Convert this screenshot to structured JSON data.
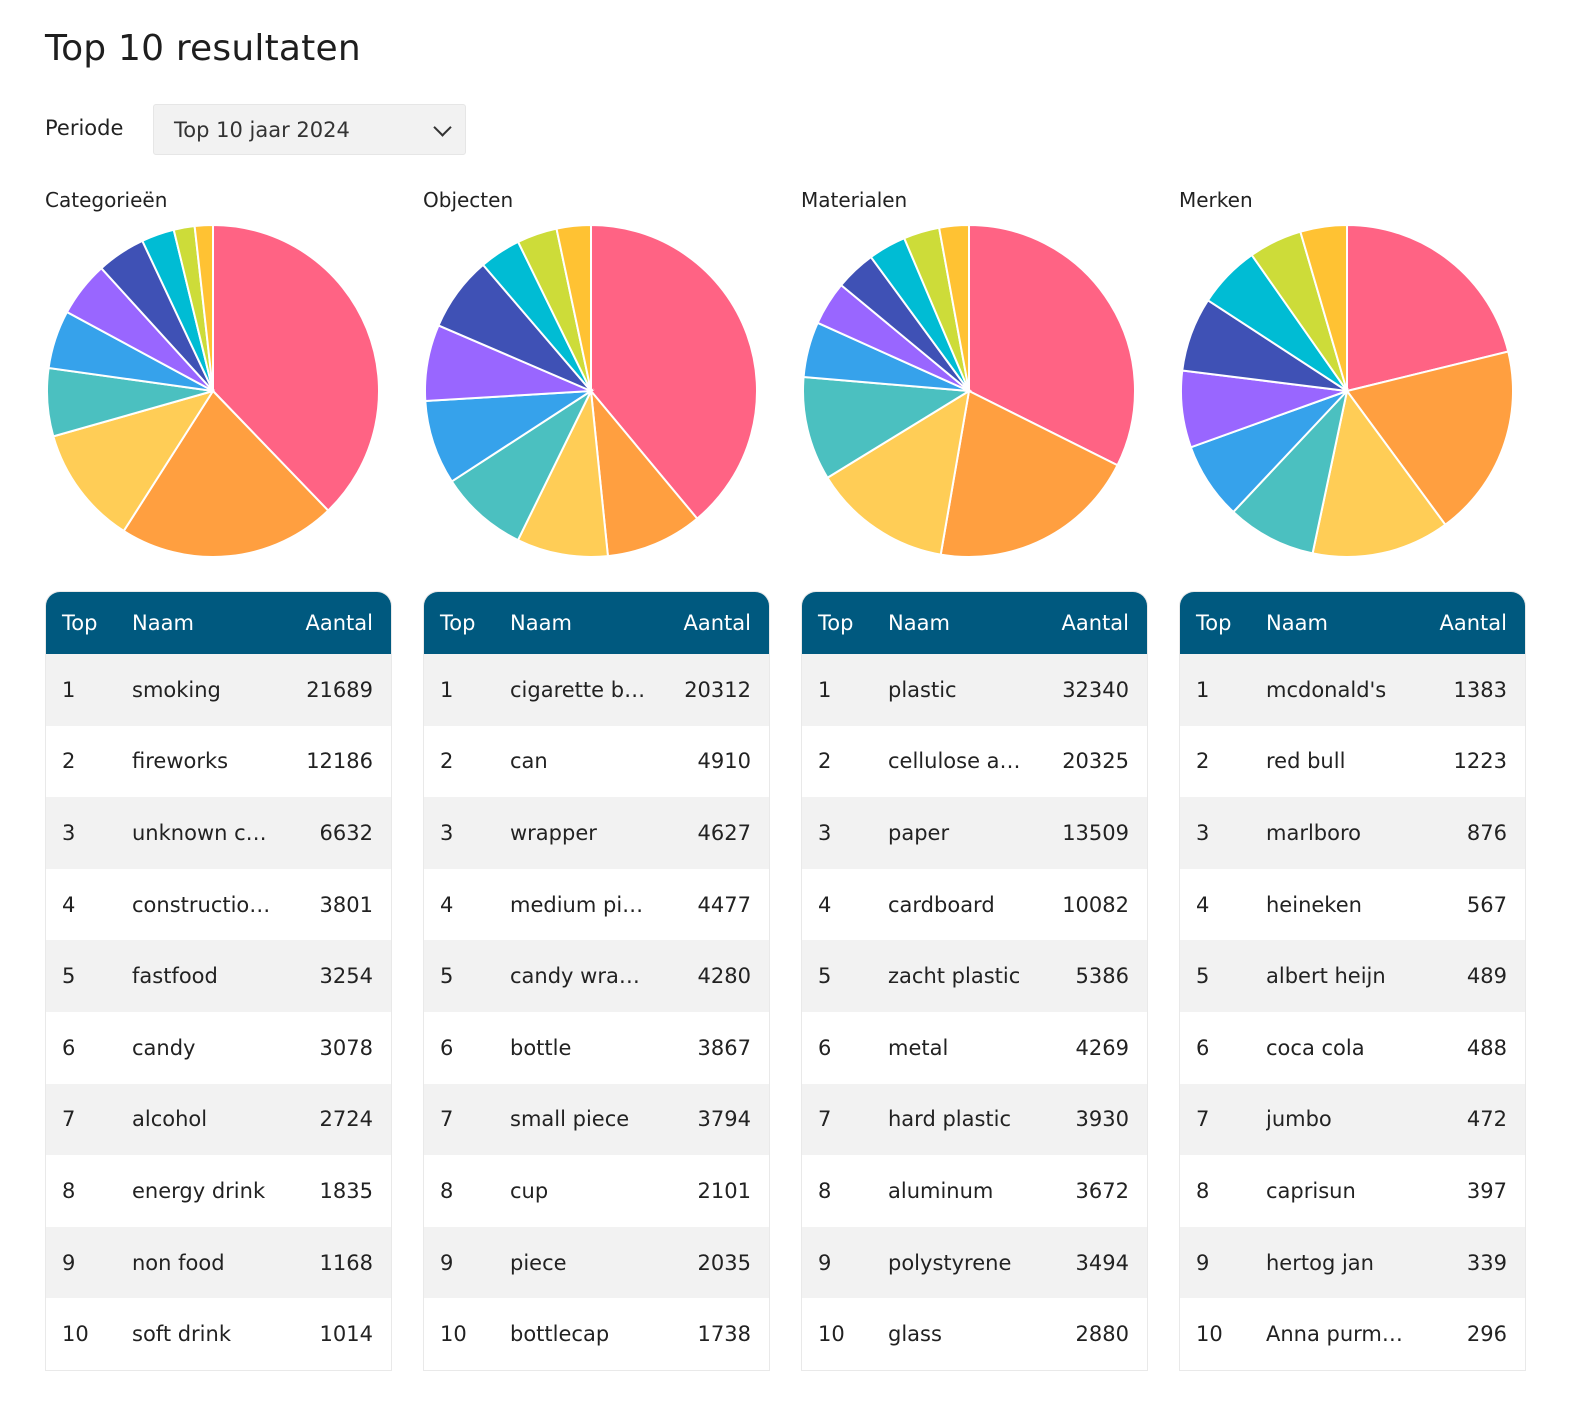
{
  "page": {
    "title": "Top 10 resultaten",
    "period_label": "Periode",
    "period_value": "Top 10 jaar 2024"
  },
  "table_headers": {
    "top": "Top",
    "name": "Naam",
    "count": "Aantal"
  },
  "palette": [
    "#ff6384",
    "#ff9f40",
    "#ffcd56",
    "#4bc0c0",
    "#36a2eb",
    "#9966ff",
    "#3f51b5",
    "#00bcd4",
    "#cddc39",
    "#ffc233"
  ],
  "chart_data": [
    {
      "type": "pie",
      "title": "Categorieën",
      "categories": [
        "smoking",
        "fireworks",
        "unknown cat...",
        "construction ...",
        "fastfood",
        "candy",
        "alcohol",
        "energy drink",
        "non food",
        "soft drink"
      ],
      "values": [
        21689,
        12186,
        6632,
        3801,
        3254,
        3078,
        2724,
        1835,
        1168,
        1014
      ]
    },
    {
      "type": "pie",
      "title": "Objecten",
      "categories": [
        "cigarette butt",
        "can",
        "wrapper",
        "medium piece",
        "candy wrapper",
        "bottle",
        "small piece",
        "cup",
        "piece",
        "bottlecap"
      ],
      "values": [
        20312,
        4910,
        4627,
        4477,
        4280,
        3867,
        3794,
        2101,
        2035,
        1738
      ]
    },
    {
      "type": "pie",
      "title": "Materialen",
      "categories": [
        "plastic",
        "cellulose ace...",
        "paper",
        "cardboard",
        "zacht plastic",
        "metal",
        "hard plastic",
        "aluminum",
        "polystyrene",
        "glass"
      ],
      "values": [
        32340,
        20325,
        13509,
        10082,
        5386,
        4269,
        3930,
        3672,
        3494,
        2880
      ]
    },
    {
      "type": "pie",
      "title": "Merken",
      "categories": [
        "mcdonald's",
        "red bull",
        "marlboro",
        "heineken",
        "albert heijn",
        "coca cola",
        "jumbo",
        "caprisun",
        "hertog jan",
        "Anna purmer..."
      ],
      "values": [
        1383,
        1223,
        876,
        567,
        489,
        488,
        472,
        397,
        339,
        296
      ]
    }
  ]
}
